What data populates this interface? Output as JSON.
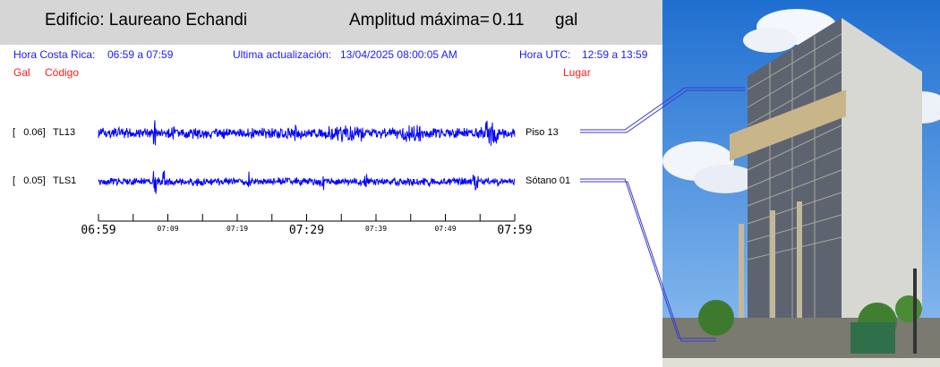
{
  "header": {
    "building_label": "Edificio: Laureano Echandi",
    "amplitude_label": "Amplitud máxima=",
    "amplitude_value": "0.11",
    "amplitude_unit": "gal"
  },
  "info": {
    "cr_time_label": "Hora Costa Rica:",
    "cr_time_range": "06:59 a 07:59",
    "last_update_label": "Ultima actualización:",
    "last_update_value": "13/04/2025 08:00:05 AM",
    "utc_label": "Hora UTC:",
    "utc_range": "12:59 a 13:59"
  },
  "columns": {
    "gal": "Gal",
    "code": "Código",
    "place": "Lugar"
  },
  "traces": [
    {
      "amplitude": "[   0.06]",
      "code": "TL13",
      "place": "Piso 13",
      "color": "#0000ff"
    },
    {
      "amplitude": "[   0.05]",
      "code": "TLS1",
      "place": "Sótano 01",
      "color": "#0000ff"
    }
  ],
  "time_axis": {
    "major_ticks": [
      "06:59",
      "07:29",
      "07:59"
    ],
    "minor_ticks": [
      "07:09",
      "07:19",
      "07:39",
      "07:49"
    ]
  },
  "colors": {
    "header_bg": "#d6d6d6",
    "info_text": "#1a1aff",
    "column_text": "#ff1a1a",
    "trace": "#0000ff"
  }
}
